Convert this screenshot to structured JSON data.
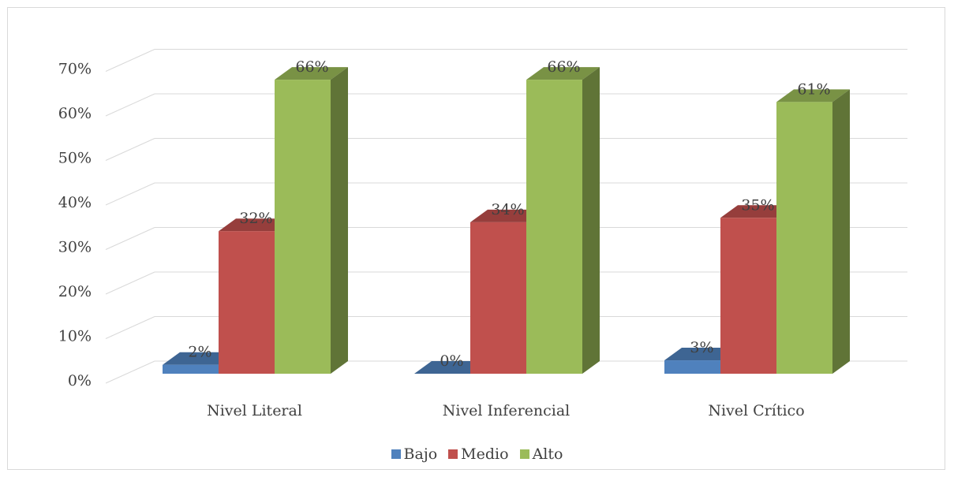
{
  "chart_data": {
    "type": "bar",
    "style": "3d-clustered-column",
    "categories": [
      "Nivel Literal",
      "Nivel Inferencial",
      "Nivel Crítico"
    ],
    "series": [
      {
        "name": "Bajo",
        "color": "#4f81bd",
        "values": [
          2,
          0,
          3
        ],
        "labels": [
          "2%",
          "0%",
          "3%"
        ]
      },
      {
        "name": "Medio",
        "color": "#c0504d",
        "values": [
          32,
          34,
          35
        ],
        "labels": [
          "32%",
          "34%",
          "35%"
        ]
      },
      {
        "name": "Alto",
        "color": "#9bbb59",
        "values": [
          66,
          66,
          61
        ],
        "labels": [
          "66%",
          "66%",
          "61%"
        ]
      }
    ],
    "yticks": [
      "0%",
      "10%",
      "20%",
      "30%",
      "40%",
      "50%",
      "60%",
      "70%"
    ],
    "ylim": [
      0,
      70
    ],
    "grid": true,
    "legend_position": "bottom"
  }
}
